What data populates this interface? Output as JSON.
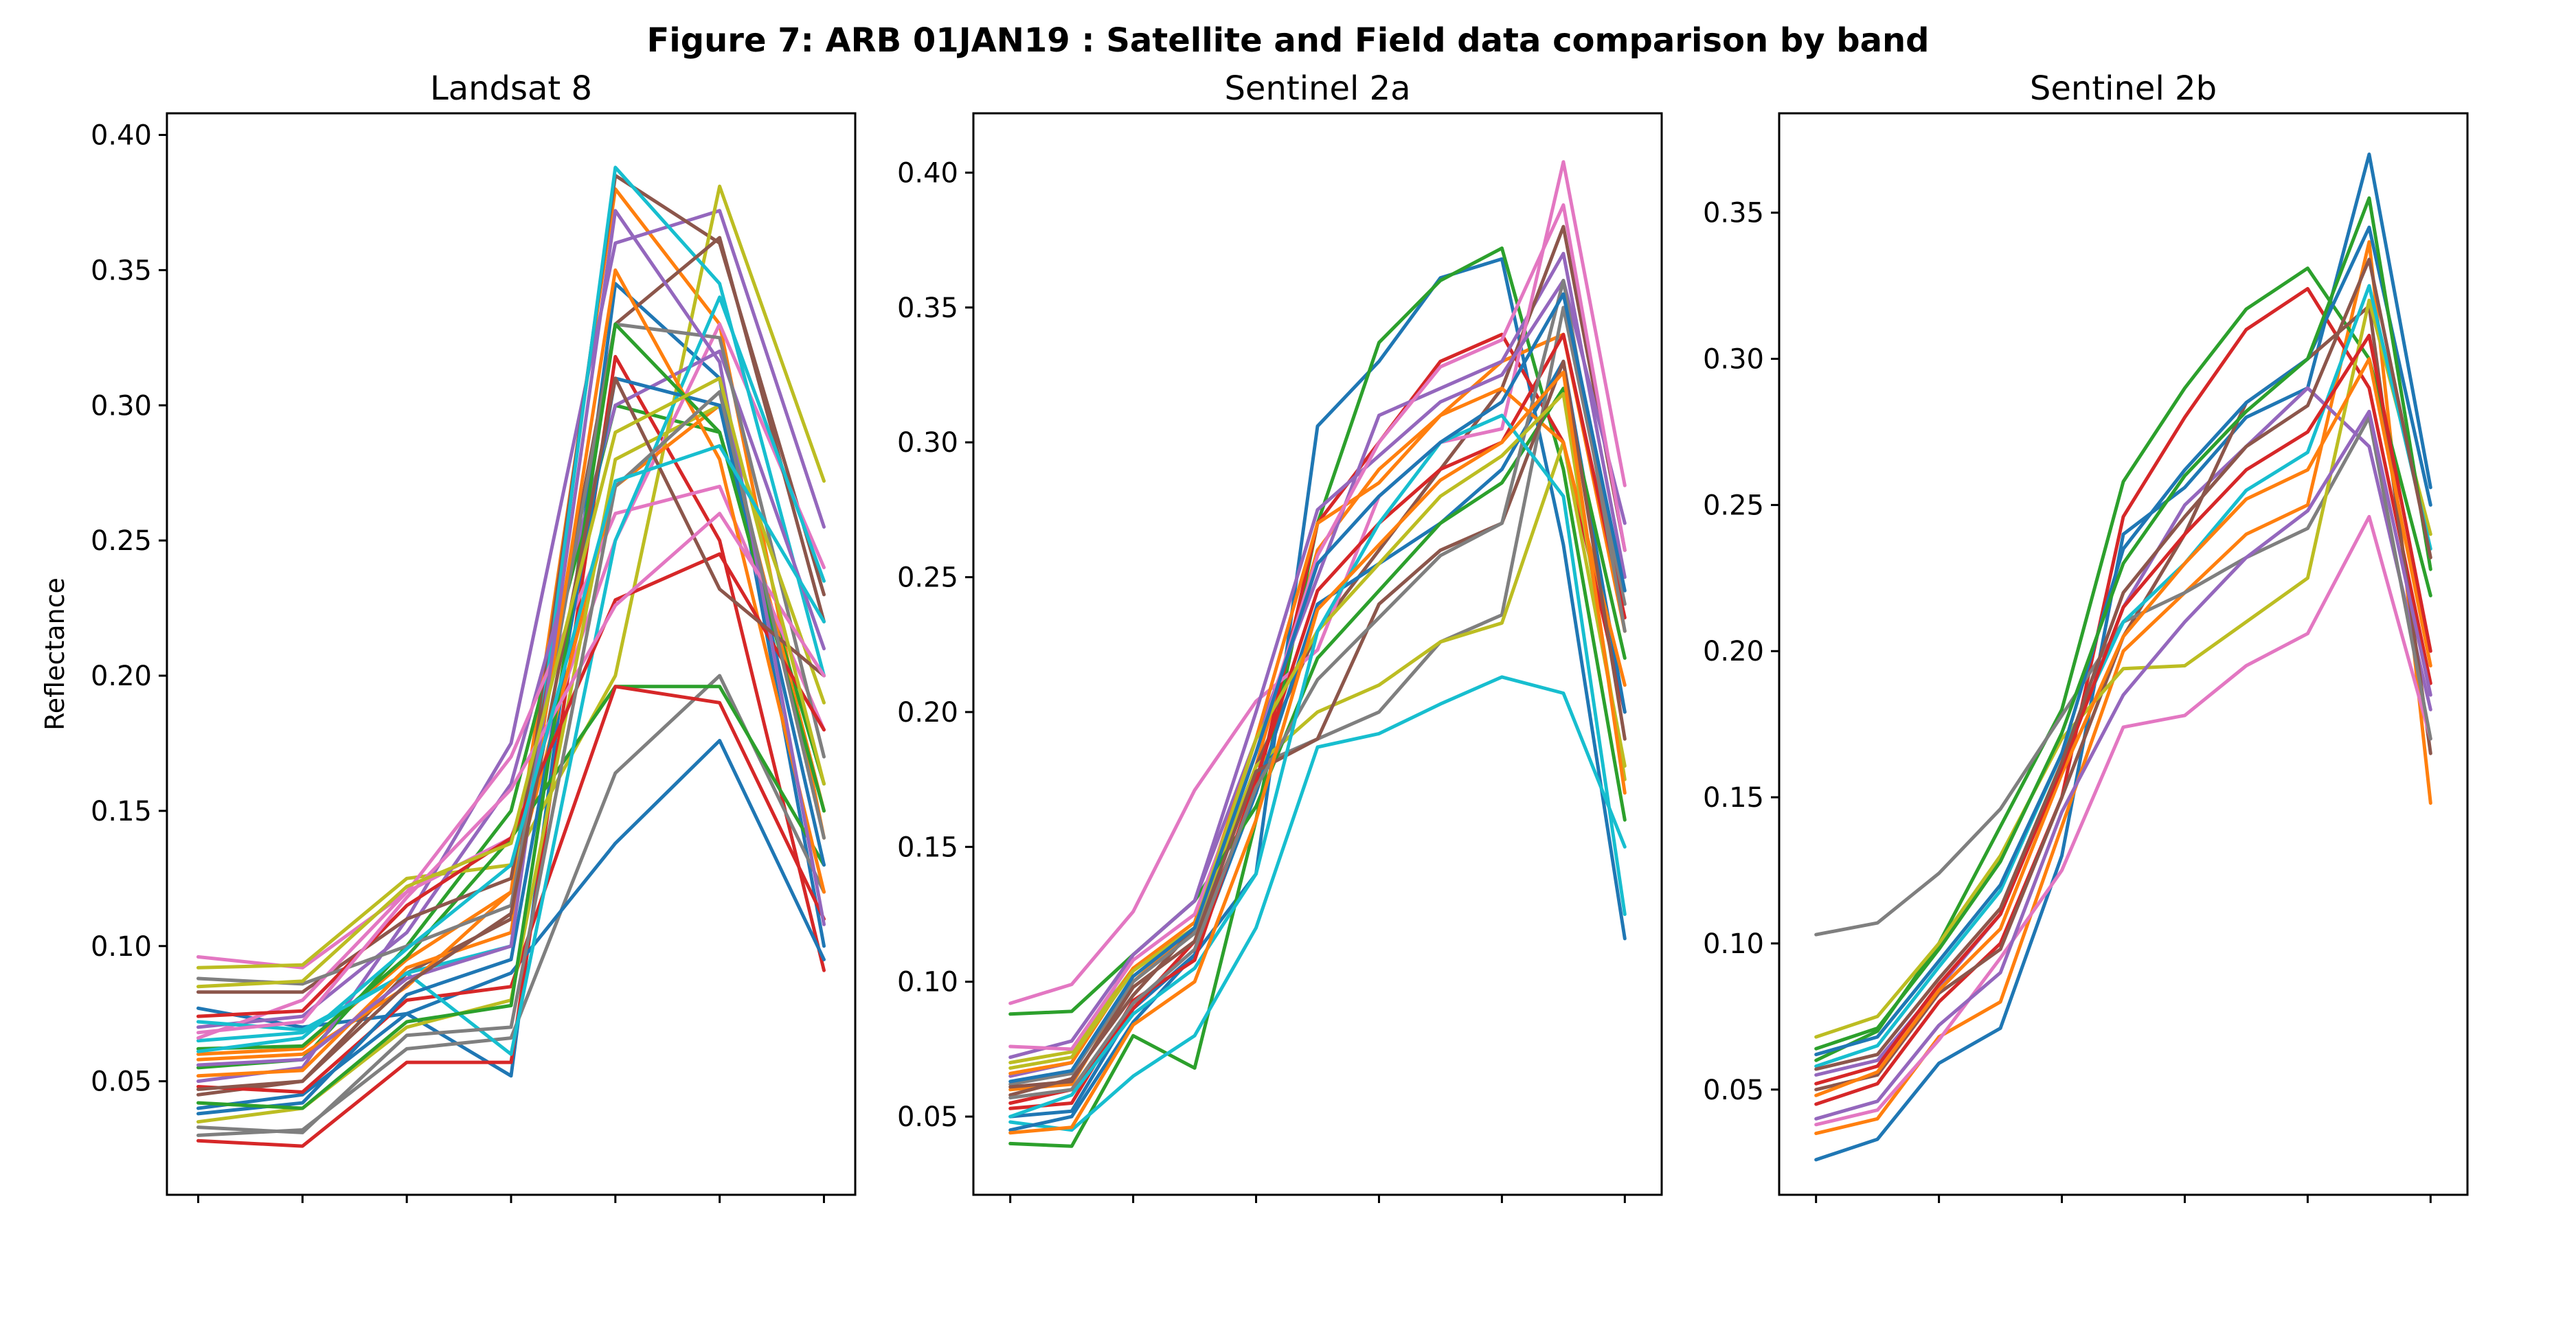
{
  "figure": {
    "title": "Figure 7: ARB 01JAN19 : Satellite and Field data comparison by band"
  },
  "palette": [
    "#1f77b4",
    "#ff7f0e",
    "#2ca02c",
    "#d62728",
    "#9467bd",
    "#8c564b",
    "#e377c2",
    "#7f7f7f",
    "#bcbd22",
    "#17becf"
  ],
  "chart_data": [
    {
      "type": "line",
      "title": "Landsat 8",
      "xlabel": "",
      "ylabel": "Reflectance",
      "x_tick_count": 7,
      "xlim": [
        -0.3,
        6.3
      ],
      "ylim": [
        0.008,
        0.408
      ],
      "yticks": [
        0.05,
        0.1,
        0.15,
        0.2,
        0.25,
        0.3,
        0.35,
        0.4
      ],
      "ytick_labels": [
        "0.05",
        "0.10",
        "0.15",
        "0.20",
        "0.25",
        "0.30",
        "0.35",
        "0.40"
      ],
      "x": [
        0,
        1,
        2,
        3,
        4,
        5,
        6
      ],
      "grid": false,
      "series": [
        {
          "values": [
            0.077,
            0.07,
            0.075,
            0.052,
            0.345,
            0.31,
            0.1
          ]
        },
        {
          "values": [
            0.06,
            0.062,
            0.095,
            0.12,
            0.38,
            0.33,
            0.14
          ]
        },
        {
          "values": [
            0.055,
            0.058,
            0.1,
            0.15,
            0.3,
            0.29,
            0.16
          ]
        },
        {
          "values": [
            0.028,
            0.026,
            0.057,
            0.057,
            0.318,
            0.25,
            0.091
          ]
        },
        {
          "values": [
            0.05,
            0.055,
            0.11,
            0.175,
            0.36,
            0.372,
            0.255
          ]
        },
        {
          "values": [
            0.045,
            0.05,
            0.09,
            0.11,
            0.385,
            0.36,
            0.23
          ]
        },
        {
          "values": [
            0.096,
            0.092,
            0.12,
            0.14,
            0.25,
            0.33,
            0.24
          ]
        },
        {
          "values": [
            0.03,
            0.032,
            0.062,
            0.066,
            0.164,
            0.2,
            0.12
          ]
        },
        {
          "values": [
            0.092,
            0.093,
            0.125,
            0.13,
            0.2,
            0.381,
            0.272
          ]
        },
        {
          "values": [
            0.065,
            0.068,
            0.09,
            0.1,
            0.388,
            0.345,
            0.2
          ]
        },
        {
          "values": [
            0.04,
            0.045,
            0.075,
            0.09,
            0.138,
            0.176,
            0.095
          ]
        },
        {
          "values": [
            0.058,
            0.06,
            0.085,
            0.12,
            0.27,
            0.3,
            0.15
          ]
        },
        {
          "values": [
            0.062,
            0.063,
            0.096,
            0.14,
            0.196,
            0.196,
            0.13
          ]
        },
        {
          "values": [
            0.048,
            0.046,
            0.08,
            0.085,
            0.196,
            0.19,
            0.11
          ]
        },
        {
          "values": [
            0.07,
            0.074,
            0.105,
            0.16,
            0.3,
            0.32,
            0.21
          ]
        },
        {
          "values": [
            0.083,
            0.083,
            0.11,
            0.125,
            0.33,
            0.362,
            0.22
          ]
        },
        {
          "values": [
            0.066,
            0.08,
            0.12,
            0.17,
            0.26,
            0.27,
            0.18
          ]
        },
        {
          "values": [
            0.088,
            0.086,
            0.1,
            0.115,
            0.33,
            0.325,
            0.17
          ]
        },
        {
          "values": [
            0.035,
            0.04,
            0.07,
            0.08,
            0.28,
            0.3,
            0.19
          ]
        },
        {
          "values": [
            0.072,
            0.069,
            0.09,
            0.06,
            0.25,
            0.34,
            0.235
          ]
        },
        {
          "values": [
            0.038,
            0.042,
            0.082,
            0.095,
            0.31,
            0.3,
            0.13
          ]
        },
        {
          "values": [
            0.052,
            0.054,
            0.092,
            0.105,
            0.35,
            0.28,
            0.12
          ]
        },
        {
          "values": [
            0.042,
            0.04,
            0.072,
            0.078,
            0.33,
            0.29,
            0.15
          ]
        },
        {
          "values": [
            0.074,
            0.076,
            0.115,
            0.14,
            0.228,
            0.245,
            0.18
          ]
        },
        {
          "values": [
            0.056,
            0.058,
            0.088,
            0.1,
            0.372,
            0.316,
            0.108
          ]
        },
        {
          "values": [
            0.047,
            0.05,
            0.086,
            0.112,
            0.31,
            0.232,
            0.2
          ]
        },
        {
          "values": [
            0.068,
            0.072,
            0.118,
            0.158,
            0.226,
            0.26,
            0.2
          ]
        },
        {
          "values": [
            0.033,
            0.031,
            0.067,
            0.07,
            0.27,
            0.305,
            0.14
          ]
        },
        {
          "values": [
            0.085,
            0.087,
            0.122,
            0.138,
            0.29,
            0.31,
            0.16
          ]
        },
        {
          "values": [
            0.061,
            0.066,
            0.099,
            0.13,
            0.272,
            0.285,
            0.22
          ]
        }
      ]
    },
    {
      "type": "line",
      "title": "Sentinel 2a",
      "xlabel": "",
      "ylabel": "",
      "x_tick_count": 6,
      "xlim": [
        -0.3,
        5.3
      ],
      "ylim": [
        0.021,
        0.422
      ],
      "yticks": [
        0.05,
        0.1,
        0.15,
        0.2,
        0.25,
        0.3,
        0.35,
        0.4
      ],
      "ytick_labels": [
        "0.05",
        "0.10",
        "0.15",
        "0.20",
        "0.25",
        "0.30",
        "0.35",
        "0.40"
      ],
      "x": [
        0,
        0.5,
        1,
        1.5,
        2,
        2.5,
        3,
        3.5,
        4,
        4.5,
        5
      ],
      "grid": false,
      "series": [
        {
          "values": [
            0.05,
            0.052,
            0.09,
            0.11,
            0.14,
            0.306,
            0.33,
            0.361,
            0.368,
            0.262,
            0.116
          ]
        },
        {
          "values": [
            0.06,
            0.062,
            0.1,
            0.12,
            0.18,
            0.26,
            0.29,
            0.31,
            0.33,
            0.34,
            0.23
          ]
        },
        {
          "values": [
            0.04,
            0.039,
            0.08,
            0.068,
            0.16,
            0.27,
            0.337,
            0.36,
            0.372,
            0.29,
            0.16
          ]
        },
        {
          "values": [
            0.055,
            0.06,
            0.09,
            0.115,
            0.17,
            0.27,
            0.3,
            0.33,
            0.34,
            0.3,
            0.2
          ]
        },
        {
          "values": [
            0.065,
            0.07,
            0.11,
            0.13,
            0.19,
            0.25,
            0.31,
            0.32,
            0.33,
            0.37,
            0.25
          ]
        },
        {
          "values": [
            0.058,
            0.064,
            0.095,
            0.12,
            0.18,
            0.23,
            0.26,
            0.29,
            0.32,
            0.38,
            0.26
          ]
        },
        {
          "values": [
            0.092,
            0.099,
            0.126,
            0.171,
            0.204,
            0.223,
            0.28,
            0.3,
            0.305,
            0.404,
            0.284
          ]
        },
        {
          "values": [
            0.062,
            0.066,
            0.1,
            0.118,
            0.18,
            0.19,
            0.2,
            0.226,
            0.236,
            0.35,
            0.24
          ]
        },
        {
          "values": [
            0.07,
            0.074,
            0.105,
            0.12,
            0.18,
            0.2,
            0.21,
            0.226,
            0.233,
            0.3,
            0.18
          ]
        },
        {
          "values": [
            0.048,
            0.045,
            0.065,
            0.08,
            0.12,
            0.187,
            0.192,
            0.203,
            0.213,
            0.207,
            0.15
          ]
        },
        {
          "values": [
            0.045,
            0.05,
            0.085,
            0.11,
            0.17,
            0.24,
            0.255,
            0.27,
            0.29,
            0.33,
            0.2
          ]
        },
        {
          "values": [
            0.066,
            0.07,
            0.105,
            0.122,
            0.19,
            0.27,
            0.285,
            0.31,
            0.32,
            0.3,
            0.21
          ]
        },
        {
          "values": [
            0.088,
            0.089,
            0.11,
            0.13,
            0.165,
            0.22,
            0.245,
            0.27,
            0.285,
            0.32,
            0.22
          ]
        },
        {
          "values": [
            0.053,
            0.055,
            0.093,
            0.108,
            0.175,
            0.245,
            0.27,
            0.29,
            0.3,
            0.34,
            0.235
          ]
        },
        {
          "values": [
            0.072,
            0.078,
            0.11,
            0.13,
            0.2,
            0.275,
            0.295,
            0.315,
            0.325,
            0.36,
            0.27
          ]
        },
        {
          "values": [
            0.061,
            0.063,
            0.098,
            0.115,
            0.178,
            0.19,
            0.24,
            0.26,
            0.27,
            0.33,
            0.19
          ]
        },
        {
          "values": [
            0.076,
            0.075,
            0.108,
            0.125,
            0.185,
            0.258,
            0.3,
            0.328,
            0.338,
            0.388,
            0.26
          ]
        },
        {
          "values": [
            0.057,
            0.06,
            0.092,
            0.112,
            0.172,
            0.212,
            0.235,
            0.258,
            0.27,
            0.36,
            0.23
          ]
        },
        {
          "values": [
            0.068,
            0.072,
            0.104,
            0.12,
            0.19,
            0.23,
            0.255,
            0.28,
            0.295,
            0.318,
            0.175
          ]
        },
        {
          "values": [
            0.05,
            0.058,
            0.088,
            0.105,
            0.14,
            0.23,
            0.27,
            0.3,
            0.31,
            0.28,
            0.125
          ]
        },
        {
          "values": [
            0.063,
            0.067,
            0.102,
            0.12,
            0.185,
            0.255,
            0.28,
            0.3,
            0.315,
            0.355,
            0.245
          ]
        },
        {
          "values": [
            0.044,
            0.046,
            0.084,
            0.1,
            0.16,
            0.238,
            0.262,
            0.286,
            0.3,
            0.326,
            0.17
          ]
        }
      ]
    },
    {
      "type": "line",
      "title": "Sentinel 2b",
      "xlabel": "",
      "ylabel": "",
      "x_tick_count": 6,
      "xlim": [
        -0.3,
        5.3
      ],
      "ylim": [
        0.014,
        0.384
      ],
      "yticks": [
        0.05,
        0.1,
        0.15,
        0.2,
        0.25,
        0.3,
        0.35
      ],
      "ytick_labels": [
        "0.05",
        "0.10",
        "0.15",
        "0.20",
        "0.25",
        "0.30",
        "0.35"
      ],
      "x": [
        0,
        0.5,
        1,
        1.5,
        2,
        2.5,
        3,
        3.5,
        4,
        4.5,
        5
      ],
      "grid": false,
      "series": [
        {
          "values": [
            0.026,
            0.033,
            0.059,
            0.071,
            0.13,
            0.24,
            0.256,
            0.28,
            0.29,
            0.37,
            0.256
          ]
        },
        {
          "values": [
            0.035,
            0.04,
            0.068,
            0.08,
            0.14,
            0.2,
            0.22,
            0.24,
            0.25,
            0.34,
            0.148
          ]
        },
        {
          "values": [
            0.06,
            0.07,
            0.1,
            0.14,
            0.18,
            0.258,
            0.29,
            0.317,
            0.331,
            0.3,
            0.219
          ]
        },
        {
          "values": [
            0.045,
            0.052,
            0.08,
            0.1,
            0.15,
            0.246,
            0.28,
            0.31,
            0.324,
            0.29,
            0.189
          ]
        },
        {
          "values": [
            0.055,
            0.06,
            0.085,
            0.11,
            0.16,
            0.215,
            0.25,
            0.27,
            0.29,
            0.27,
            0.18
          ]
        },
        {
          "values": [
            0.05,
            0.055,
            0.083,
            0.098,
            0.15,
            0.205,
            0.24,
            0.285,
            0.3,
            0.318,
            0.165
          ]
        },
        {
          "values": [
            0.038,
            0.043,
            0.067,
            0.095,
            0.125,
            0.174,
            0.178,
            0.195,
            0.206,
            0.246,
            0.17
          ]
        },
        {
          "values": [
            0.103,
            0.107,
            0.124,
            0.146,
            0.178,
            0.21,
            0.22,
            0.232,
            0.242,
            0.28,
            0.17
          ]
        },
        {
          "values": [
            0.068,
            0.075,
            0.1,
            0.13,
            0.17,
            0.194,
            0.195,
            0.21,
            0.225,
            0.32,
            0.24
          ]
        },
        {
          "values": [
            0.058,
            0.065,
            0.092,
            0.118,
            0.165,
            0.21,
            0.23,
            0.255,
            0.268,
            0.325,
            0.235
          ]
        },
        {
          "values": [
            0.062,
            0.068,
            0.094,
            0.12,
            0.165,
            0.235,
            0.262,
            0.285,
            0.3,
            0.345,
            0.25
          ]
        },
        {
          "values": [
            0.048,
            0.056,
            0.084,
            0.105,
            0.158,
            0.205,
            0.23,
            0.252,
            0.262,
            0.3,
            0.195
          ]
        },
        {
          "values": [
            0.064,
            0.071,
            0.098,
            0.128,
            0.172,
            0.23,
            0.26,
            0.282,
            0.3,
            0.355,
            0.228
          ]
        },
        {
          "values": [
            0.052,
            0.058,
            0.086,
            0.11,
            0.16,
            0.215,
            0.24,
            0.262,
            0.275,
            0.308,
            0.2
          ]
        },
        {
          "values": [
            0.04,
            0.046,
            0.072,
            0.09,
            0.145,
            0.185,
            0.21,
            0.232,
            0.248,
            0.282,
            0.185
          ]
        },
        {
          "values": [
            0.057,
            0.062,
            0.088,
            0.112,
            0.162,
            0.22,
            0.246,
            0.27,
            0.284,
            0.334,
            0.232
          ]
        }
      ]
    }
  ]
}
